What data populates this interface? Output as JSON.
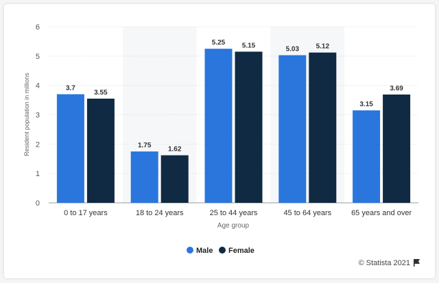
{
  "chart_data": {
    "type": "bar",
    "categories": [
      "0 to 17 years",
      "18 to 24 years",
      "25 to 44 years",
      "45 to 64 years",
      "65 years and over"
    ],
    "series": [
      {
        "name": "Male",
        "color": "#2a76dd",
        "values": [
          3.7,
          1.75,
          5.25,
          5.03,
          3.15
        ],
        "labels": [
          "3.7",
          "1.75",
          "5.25",
          "5.03",
          "3.15"
        ]
      },
      {
        "name": "Female",
        "color": "#0f2a42",
        "values": [
          3.55,
          1.62,
          5.15,
          5.12,
          3.69
        ],
        "labels": [
          "3.55",
          "1.62",
          "5.15",
          "5.12",
          "3.69"
        ]
      }
    ],
    "xlabel": "Age group",
    "ylabel": "Resident population in millions",
    "ylim": [
      0,
      6
    ],
    "yticks": [
      "0",
      "1",
      "2",
      "3",
      "4",
      "5",
      "6"
    ],
    "grid": true,
    "legend": "bottom-center"
  },
  "credit": "© Statista 2021"
}
